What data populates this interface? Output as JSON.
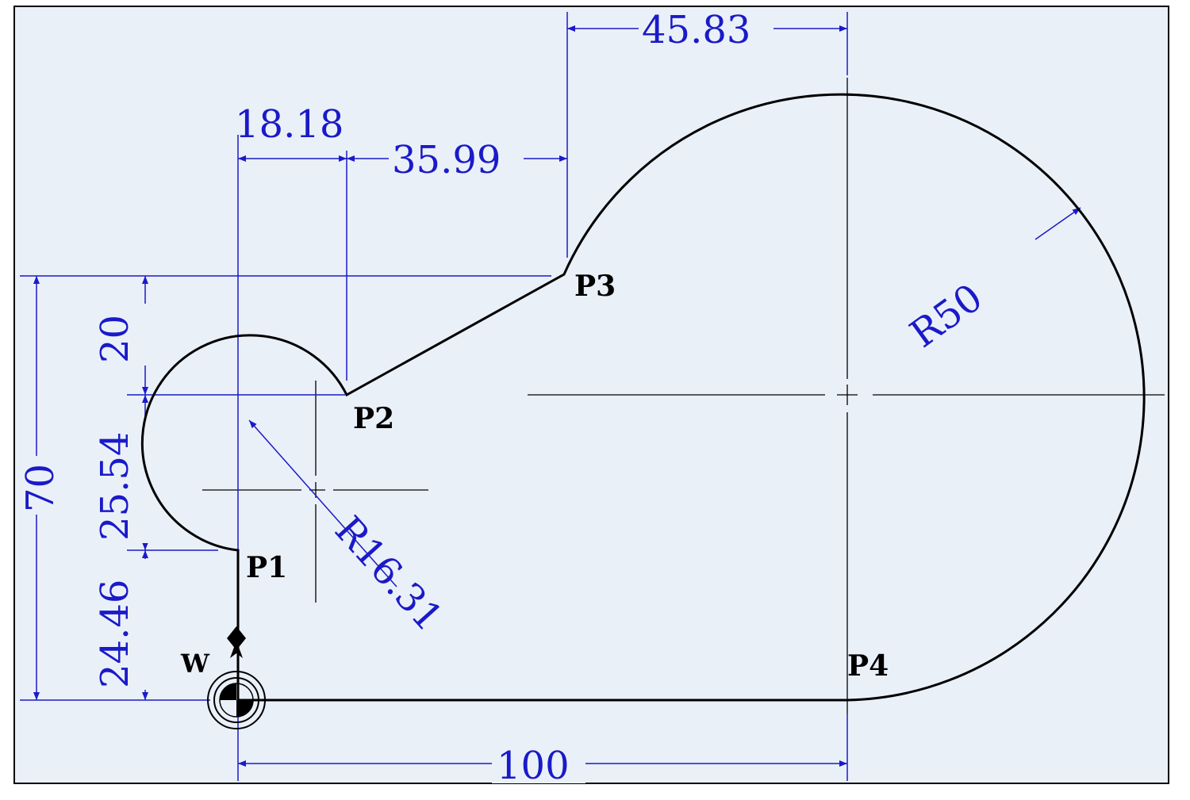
{
  "colors": {
    "background": "#eaf0f8",
    "dimension": "#1a1ac8",
    "profile": "#000000"
  },
  "points": {
    "p1": "P1",
    "p2": "P2",
    "p3": "P3",
    "p4": "P4",
    "w": "W"
  },
  "dimensions": {
    "d_18_18": "18.18",
    "d_35_99": "35.99",
    "d_45_83": "45.83",
    "d_100": "100",
    "d_70": "70",
    "d_20": "20",
    "d_25_54": "25.54",
    "d_24_46": "24.46",
    "r_16_31": "R16.31",
    "r_50": "R50"
  },
  "icons": {
    "origin": "work-origin-icon",
    "tool_start": "tool-start-icon",
    "arrows": "dimension-arrow-icon"
  }
}
